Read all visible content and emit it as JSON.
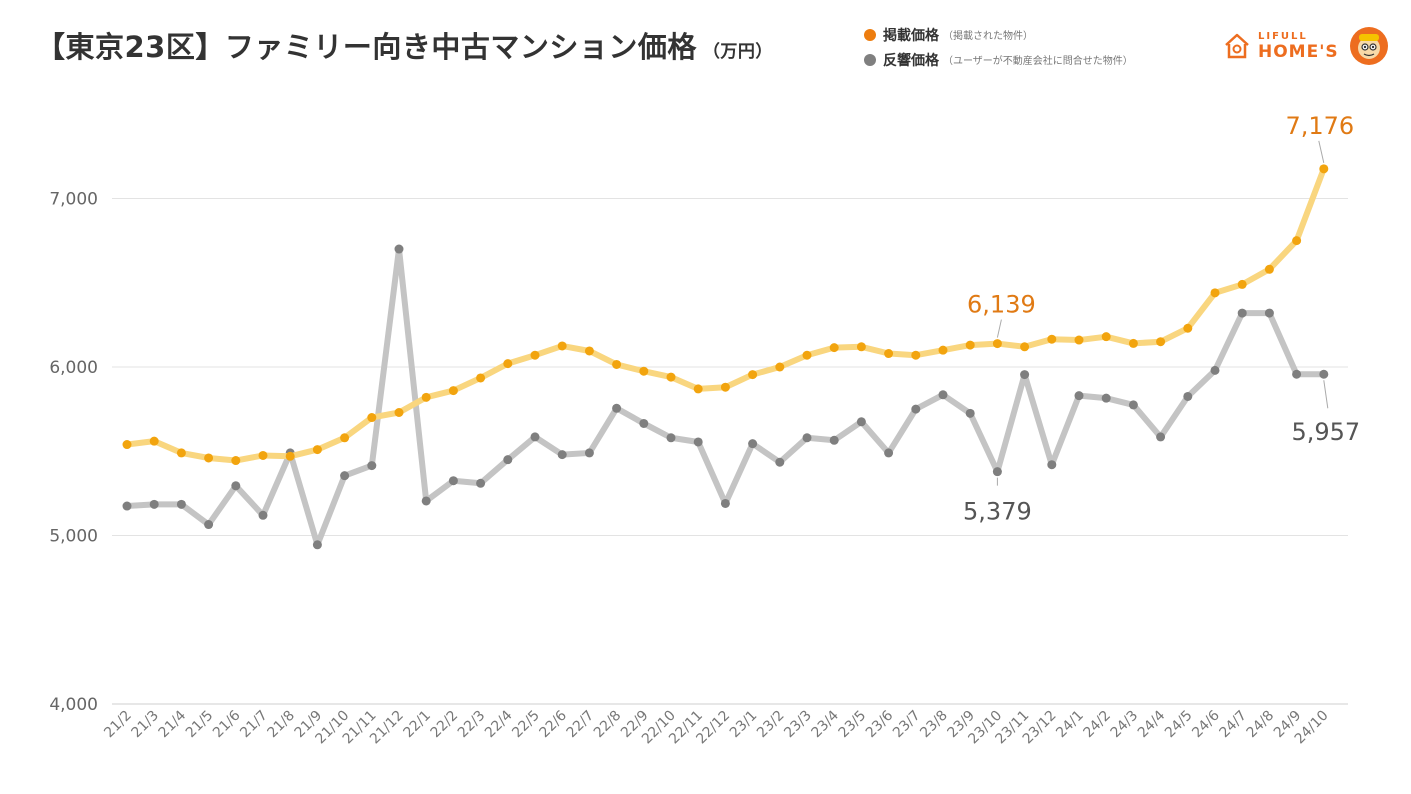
{
  "title": "【東京23区】ファミリー向き中古マンション価格",
  "title_unit": "（万円）",
  "legend": [
    {
      "name": "掲載価格",
      "note": "（掲載された物件）",
      "color": "#ED7D0F"
    },
    {
      "name": "反響価格",
      "note": "（ユーザーが不動産会社に問合せた物件）",
      "color": "#7F7F7F"
    }
  ],
  "logo": {
    "top": "LIFULL",
    "bottom": "HOME'S",
    "color": "#ED6D1F"
  },
  "chart_data": {
    "type": "line",
    "categories": [
      "21/2",
      "21/3",
      "21/4",
      "21/5",
      "21/6",
      "21/7",
      "21/8",
      "21/9",
      "21/10",
      "21/11",
      "21/12",
      "22/1",
      "22/2",
      "22/3",
      "22/4",
      "22/5",
      "22/6",
      "22/7",
      "22/8",
      "22/9",
      "22/10",
      "22/11",
      "22/12",
      "23/1",
      "23/2",
      "23/3",
      "23/4",
      "23/5",
      "23/6",
      "23/7",
      "23/8",
      "23/9",
      "23/10",
      "23/11",
      "23/12",
      "24/1",
      "24/2",
      "24/3",
      "24/4",
      "24/5",
      "24/6",
      "24/7",
      "24/8",
      "24/9",
      "24/10"
    ],
    "series": [
      {
        "name": "掲載価格",
        "line_color": "#F9D67F",
        "point_color": "#F2A40E",
        "values": [
          5540,
          5560,
          5490,
          5460,
          5445,
          5475,
          5470,
          5510,
          5580,
          5700,
          5730,
          5820,
          5860,
          5935,
          6020,
          6070,
          6125,
          6095,
          6015,
          5975,
          5940,
          5870,
          5880,
          5955,
          6000,
          6070,
          6115,
          6120,
          6080,
          6070,
          6100,
          6130,
          6139,
          6120,
          6165,
          6160,
          6180,
          6140,
          6150,
          6230,
          6440,
          6490,
          6580,
          6750,
          7176
        ]
      },
      {
        "name": "反響価格",
        "line_color": "#C4C4C4",
        "point_color": "#7F7F7F",
        "values": [
          5175,
          5185,
          5185,
          5065,
          5295,
          5120,
          5490,
          4945,
          5355,
          5415,
          6700,
          5205,
          5325,
          5310,
          5450,
          5585,
          5480,
          5490,
          5755,
          5665,
          5580,
          5555,
          5190,
          5545,
          5435,
          5580,
          5565,
          5675,
          5490,
          5750,
          5835,
          5725,
          5379,
          5955,
          5420,
          5830,
          5815,
          5775,
          5585,
          5825,
          5980,
          6320,
          6320,
          5957,
          5957
        ]
      }
    ],
    "y_ticks": [
      "4,000",
      "5,000",
      "6,000",
      "7,000"
    ],
    "ylim": [
      4000,
      7500
    ],
    "grid": true,
    "annotations": [
      {
        "series": 0,
        "index": 44,
        "label": "7,176",
        "color": "#E07A14"
      },
      {
        "series": 0,
        "index": 32,
        "label": "6,139",
        "color": "#E07A14"
      },
      {
        "series": 1,
        "index": 32,
        "label": "5,379",
        "color": "#555555"
      },
      {
        "series": 1,
        "index": 44,
        "label": "5,957",
        "color": "#555555"
      }
    ]
  }
}
